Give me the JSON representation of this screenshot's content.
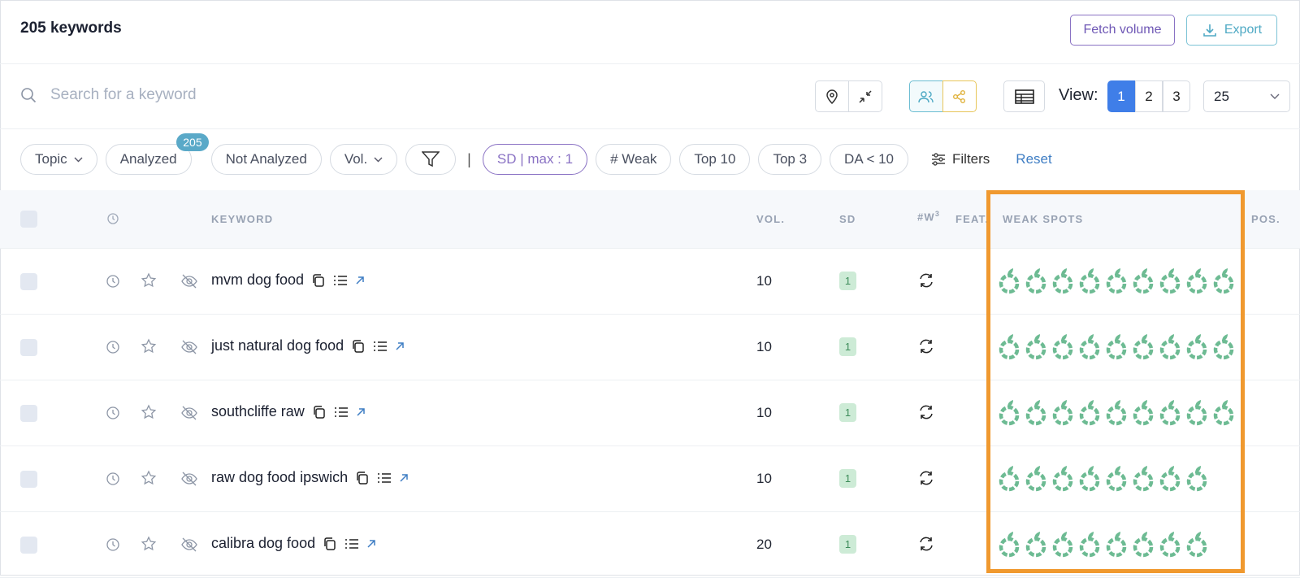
{
  "header": {
    "title": "205 keywords",
    "fetch_button": "Fetch volume",
    "export_button": "Export"
  },
  "search": {
    "placeholder": "Search for a keyword"
  },
  "view": {
    "label": "View:",
    "options": [
      "1",
      "2",
      "3"
    ],
    "per_page": "25"
  },
  "filters": {
    "chips": [
      "Topic",
      "Analyzed",
      "Not Analyzed",
      "Vol.",
      "SD | max : 1",
      "# Weak",
      "Top 10",
      "Top 3",
      "DA < 10"
    ],
    "analyzed_count": "205",
    "separator": "|",
    "filters_button": "Filters",
    "reset": "Reset"
  },
  "table": {
    "columns": {
      "keyword": "KEYWORD",
      "vol": "VOL.",
      "sd": "SD",
      "weak": "#W",
      "weak_sup": "3",
      "feat": "FEAT.",
      "weak_spots": "WEAK SPOTS",
      "pos": "POS."
    },
    "rows": [
      {
        "keyword": "mvm dog food",
        "vol": 10,
        "sd": 1,
        "weak_spots": 9
      },
      {
        "keyword": "just natural dog food",
        "vol": 10,
        "sd": 1,
        "weak_spots": 9
      },
      {
        "keyword": "southcliffe raw",
        "vol": 10,
        "sd": 1,
        "weak_spots": 9
      },
      {
        "keyword": "raw dog food ipswich",
        "vol": 10,
        "sd": 1,
        "weak_spots": 8
      },
      {
        "keyword": "calibra dog food",
        "vol": 20,
        "sd": 1,
        "weak_spots": 8
      }
    ]
  }
}
